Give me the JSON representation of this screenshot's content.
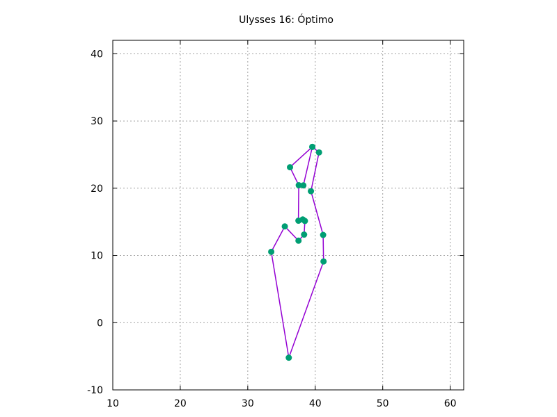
{
  "chart_data": {
    "type": "line",
    "title": "Ulysses 16: Óptimo",
    "xlabel": "",
    "ylabel": "",
    "xlim": [
      10,
      62
    ],
    "ylim": [
      -10,
      42
    ],
    "xticks": [
      10,
      20,
      30,
      40,
      50,
      60
    ],
    "yticks": [
      -10,
      0,
      10,
      20,
      30,
      40
    ],
    "grid": true,
    "colors": {
      "line": "#9400d3",
      "marker": "#009e73"
    },
    "points": [
      {
        "x": 38.24,
        "y": 20.42
      },
      {
        "x": 39.57,
        "y": 26.15
      },
      {
        "x": 40.56,
        "y": 25.32
      },
      {
        "x": 39.36,
        "y": 19.56
      },
      {
        "x": 41.17,
        "y": 13.05
      },
      {
        "x": 41.23,
        "y": 9.1
      },
      {
        "x": 36.08,
        "y": -5.21
      },
      {
        "x": 33.48,
        "y": 10.54
      },
      {
        "x": 35.49,
        "y": 14.32
      },
      {
        "x": 37.52,
        "y": 12.2
      },
      {
        "x": 38.35,
        "y": 13.1
      },
      {
        "x": 38.47,
        "y": 15.13
      },
      {
        "x": 38.15,
        "y": 15.35
      },
      {
        "x": 37.51,
        "y": 15.17
      },
      {
        "x": 37.56,
        "y": 20.44
      },
      {
        "x": 36.26,
        "y": 23.12
      },
      {
        "x": 39.57,
        "y": 26.15
      }
    ]
  }
}
